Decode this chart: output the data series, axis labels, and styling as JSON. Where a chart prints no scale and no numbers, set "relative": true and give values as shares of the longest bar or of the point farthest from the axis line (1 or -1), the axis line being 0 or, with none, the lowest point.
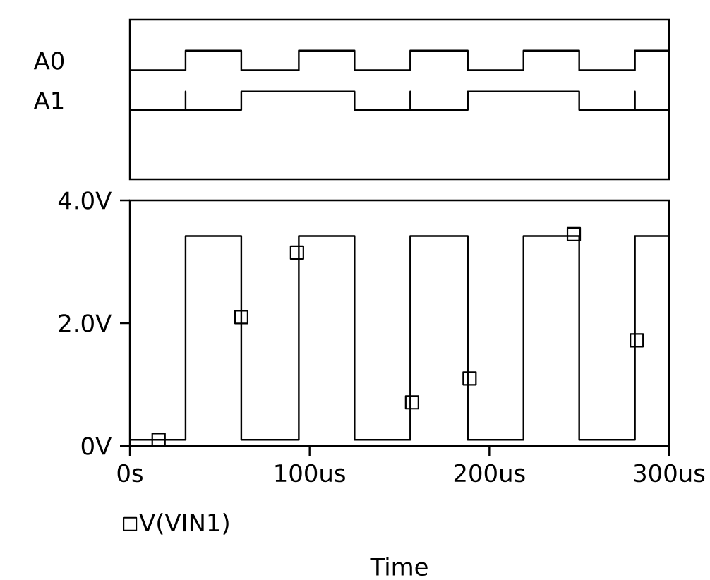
{
  "chart_data": [
    {
      "type": "step",
      "relative": true,
      "xlim": [
        0,
        300
      ],
      "series": [
        {
          "name": "A0",
          "color": "#000000",
          "x": [
            0,
            31,
            62,
            94,
            125,
            156,
            188,
            219,
            250,
            281,
            300
          ],
          "values": [
            0.67,
            1,
            0.67,
            1,
            0.67,
            1,
            0.67,
            1,
            0.67,
            1,
            1
          ]
        },
        {
          "name": "A1",
          "color": "#000000",
          "x": [
            0,
            31,
            31,
            62,
            125,
            156,
            156,
            188,
            250,
            281,
            281,
            300
          ],
          "values": [
            0,
            0.31,
            0,
            0.31,
            0,
            0.31,
            0,
            0.31,
            0,
            0.31,
            0,
            0
          ]
        }
      ]
    },
    {
      "type": "step",
      "xlim": [
        0,
        300
      ],
      "ylim": [
        0,
        4
      ],
      "xticks": [
        {
          "value": 0,
          "label": "0s"
        },
        {
          "value": 100,
          "label": "100us"
        },
        {
          "value": 200,
          "label": "200us"
        },
        {
          "value": 300,
          "label": "300us"
        }
      ],
      "yticks": [
        {
          "value": 0,
          "label": "0V"
        },
        {
          "value": 2,
          "label": "2.0V"
        },
        {
          "value": 4,
          "label": "4.0V"
        }
      ],
      "xlabel": "Time",
      "legend": "bottom",
      "series": [
        {
          "color": "#000000",
          "x": [
            0,
            31,
            62,
            94,
            125,
            156,
            188,
            219,
            250,
            281,
            300
          ],
          "values": [
            0.1,
            3.42,
            0.1,
            3.42,
            0.1,
            3.42,
            0.1,
            3.42,
            0.1,
            3.42,
            3.42
          ]
        },
        {
          "name": "V(VIN1)",
          "type": "scatter",
          "marker": "square",
          "color": "#000000",
          "x": [
            16,
            62,
            93,
            157,
            189,
            247,
            282
          ],
          "values": [
            0.1,
            2.1,
            3.15,
            0.71,
            1.1,
            3.45,
            1.72
          ]
        }
      ]
    }
  ]
}
